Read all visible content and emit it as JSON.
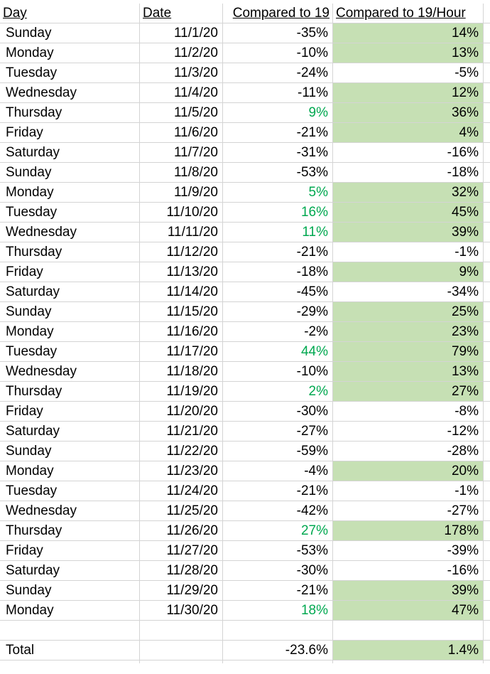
{
  "headers": [
    "Day",
    "Date",
    "Compared to 19",
    "Compared to 19/Hour"
  ],
  "colors": {
    "positive_text": "#00a850",
    "highlight_fill": "#c6e0b4",
    "grid": "#d4d4d4"
  },
  "rows": [
    {
      "day": "Sunday",
      "date": "11/1/20",
      "c19": "-35%",
      "c19h": "14%",
      "c19_pos": false,
      "c19h_fill": true
    },
    {
      "day": "Monday",
      "date": "11/2/20",
      "c19": "-10%",
      "c19h": "13%",
      "c19_pos": false,
      "c19h_fill": true
    },
    {
      "day": "Tuesday",
      "date": "11/3/20",
      "c19": "-24%",
      "c19h": "-5%",
      "c19_pos": false,
      "c19h_fill": false
    },
    {
      "day": "Wednesday",
      "date": "11/4/20",
      "c19": "-11%",
      "c19h": "12%",
      "c19_pos": false,
      "c19h_fill": true
    },
    {
      "day": "Thursday",
      "date": "11/5/20",
      "c19": "9%",
      "c19h": "36%",
      "c19_pos": true,
      "c19h_fill": true
    },
    {
      "day": "Friday",
      "date": "11/6/20",
      "c19": "-21%",
      "c19h": "4%",
      "c19_pos": false,
      "c19h_fill": true
    },
    {
      "day": "Saturday",
      "date": "11/7/20",
      "c19": "-31%",
      "c19h": "-16%",
      "c19_pos": false,
      "c19h_fill": false
    },
    {
      "day": "Sunday",
      "date": "11/8/20",
      "c19": "-53%",
      "c19h": "-18%",
      "c19_pos": false,
      "c19h_fill": false
    },
    {
      "day": "Monday",
      "date": "11/9/20",
      "c19": "5%",
      "c19h": "32%",
      "c19_pos": true,
      "c19h_fill": true
    },
    {
      "day": "Tuesday",
      "date": "11/10/20",
      "c19": "16%",
      "c19h": "45%",
      "c19_pos": true,
      "c19h_fill": true
    },
    {
      "day": "Wednesday",
      "date": "11/11/20",
      "c19": "11%",
      "c19h": "39%",
      "c19_pos": true,
      "c19h_fill": true
    },
    {
      "day": "Thursday",
      "date": "11/12/20",
      "c19": "-21%",
      "c19h": "-1%",
      "c19_pos": false,
      "c19h_fill": false
    },
    {
      "day": "Friday",
      "date": "11/13/20",
      "c19": "-18%",
      "c19h": "9%",
      "c19_pos": false,
      "c19h_fill": true
    },
    {
      "day": "Saturday",
      "date": "11/14/20",
      "c19": "-45%",
      "c19h": "-34%",
      "c19_pos": false,
      "c19h_fill": false
    },
    {
      "day": "Sunday",
      "date": "11/15/20",
      "c19": "-29%",
      "c19h": "25%",
      "c19_pos": false,
      "c19h_fill": true
    },
    {
      "day": "Monday",
      "date": "11/16/20",
      "c19": "-2%",
      "c19h": "23%",
      "c19_pos": false,
      "c19h_fill": true
    },
    {
      "day": "Tuesday",
      "date": "11/17/20",
      "c19": "44%",
      "c19h": "79%",
      "c19_pos": true,
      "c19h_fill": true
    },
    {
      "day": "Wednesday",
      "date": "11/18/20",
      "c19": "-10%",
      "c19h": "13%",
      "c19_pos": false,
      "c19h_fill": true
    },
    {
      "day": "Thursday",
      "date": "11/19/20",
      "c19": "2%",
      "c19h": "27%",
      "c19_pos": true,
      "c19h_fill": true
    },
    {
      "day": "Friday",
      "date": "11/20/20",
      "c19": "-30%",
      "c19h": "-8%",
      "c19_pos": false,
      "c19h_fill": false
    },
    {
      "day": "Saturday",
      "date": "11/21/20",
      "c19": "-27%",
      "c19h": "-12%",
      "c19_pos": false,
      "c19h_fill": false
    },
    {
      "day": "Sunday",
      "date": "11/22/20",
      "c19": "-59%",
      "c19h": "-28%",
      "c19_pos": false,
      "c19h_fill": false
    },
    {
      "day": "Monday",
      "date": "11/23/20",
      "c19": "-4%",
      "c19h": "20%",
      "c19_pos": false,
      "c19h_fill": true
    },
    {
      "day": "Tuesday",
      "date": "11/24/20",
      "c19": "-21%",
      "c19h": "-1%",
      "c19_pos": false,
      "c19h_fill": false
    },
    {
      "day": "Wednesday",
      "date": "11/25/20",
      "c19": "-42%",
      "c19h": "-27%",
      "c19_pos": false,
      "c19h_fill": false
    },
    {
      "day": "Thursday",
      "date": "11/26/20",
      "c19": "27%",
      "c19h": "178%",
      "c19_pos": true,
      "c19h_fill": true
    },
    {
      "day": "Friday",
      "date": "11/27/20",
      "c19": "-53%",
      "c19h": "-39%",
      "c19_pos": false,
      "c19h_fill": false
    },
    {
      "day": "Saturday",
      "date": "11/28/20",
      "c19": "-30%",
      "c19h": "-16%",
      "c19_pos": false,
      "c19h_fill": false
    },
    {
      "day": "Sunday",
      "date": "11/29/20",
      "c19": "-21%",
      "c19h": "39%",
      "c19_pos": false,
      "c19h_fill": true
    },
    {
      "day": "Monday",
      "date": "11/30/20",
      "c19": "18%",
      "c19h": "47%",
      "c19_pos": true,
      "c19h_fill": true
    }
  ],
  "total": {
    "label": "Total",
    "date": "",
    "c19": "-23.6%",
    "c19h": "1.4%",
    "c19_pos": false,
    "c19h_fill": true
  }
}
